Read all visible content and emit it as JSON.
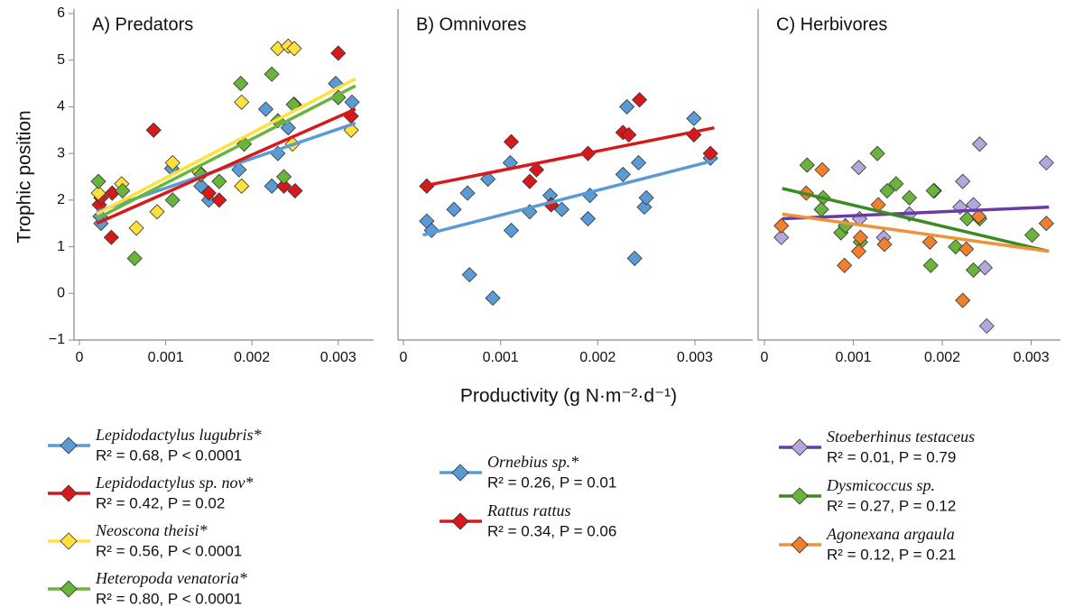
{
  "chart_data": [
    {
      "type": "scatter",
      "title": "A) Predators",
      "ylabel": "Trophic position",
      "xlim": [
        0,
        0.0034
      ],
      "ylim": [
        -1,
        6
      ],
      "xticks": [
        0,
        0.001,
        0.002,
        0.003
      ],
      "yticks": [
        {
          "value": -1,
          "label": "−1"
        },
        0,
        1,
        2,
        3,
        4,
        5,
        6
      ],
      "series": [
        {
          "name": "Lepidodactylus lugubris*",
          "stats": "R² = 0.68, P < 0.0001",
          "color": "#5b9bd5",
          "x": [
            0.00024,
            0.00025,
            0.00107,
            0.00141,
            0.0015,
            0.00185,
            0.00216,
            0.00223,
            0.0023,
            0.00242,
            0.00249,
            0.00297,
            0.00316
          ],
          "values": [
            1.65,
            1.5,
            2.68,
            2.3,
            2.0,
            2.65,
            3.95,
            2.3,
            3.0,
            3.55,
            4.05,
            4.5,
            4.1
          ],
          "fit_x": [
            0.0002,
            0.0032
          ],
          "fit_y": [
            1.75,
            3.65
          ]
        },
        {
          "name": "Lepidodactylus sp. nov*",
          "stats": "R² = 0.42, P = 0.02",
          "color": "#d7191c",
          "x": [
            0.00023,
            0.00025,
            0.00037,
            0.00038,
            0.00086,
            0.0015,
            0.00162,
            0.00237,
            0.0025,
            0.003,
            0.00315
          ],
          "values": [
            1.9,
            2.05,
            1.2,
            2.15,
            3.5,
            2.15,
            2.0,
            2.3,
            2.2,
            5.15,
            3.8
          ],
          "fit_x": [
            0.0002,
            0.0032
          ],
          "fit_y": [
            1.5,
            3.95
          ]
        },
        {
          "name": "Neoscona theisi*",
          "stats": "R² = 0.56, P < 0.0001",
          "color": "#ffe13a",
          "x": [
            0.00022,
            0.00049,
            0.00066,
            0.0009,
            0.00108,
            0.00139,
            0.00188,
            0.00188,
            0.0023,
            0.00242,
            0.00249,
            0.00247,
            0.003,
            0.00315
          ],
          "values": [
            2.15,
            2.35,
            1.4,
            1.75,
            2.8,
            2.6,
            2.3,
            4.1,
            5.25,
            5.3,
            5.25,
            3.2,
            4.2,
            3.5
          ],
          "fit_x": [
            0.0002,
            0.0032
          ],
          "fit_y": [
            1.7,
            4.6
          ]
        },
        {
          "name": "Heteropoda venatoria*",
          "stats": "R² = 0.80, P < 0.0001",
          "color": "#6ab43e",
          "x": [
            0.00022,
            0.0005,
            0.00064,
            0.00108,
            0.00141,
            0.00162,
            0.00187,
            0.00191,
            0.00223,
            0.0023,
            0.00237,
            0.00248,
            0.003
          ],
          "values": [
            2.4,
            2.2,
            0.75,
            2.0,
            2.55,
            2.4,
            4.5,
            3.2,
            4.7,
            3.7,
            2.5,
            4.05,
            4.2
          ],
          "fit_x": [
            0.0002,
            0.0032
          ],
          "fit_y": [
            1.6,
            4.45
          ]
        }
      ]
    },
    {
      "type": "scatter",
      "title": "B) Omnivores",
      "xlabel": "Productivity (g N·m⁻²·d⁻¹)",
      "xlim": [
        0,
        0.0034
      ],
      "ylim": [
        -1,
        6
      ],
      "xticks": [
        0,
        0.001,
        0.002,
        0.003
      ],
      "series": [
        {
          "name": "Ornebius sp.*",
          "stats": "R² = 0.26, P = 0.01",
          "color": "#5b9bd5",
          "x": [
            0.00024,
            0.00029,
            0.00052,
            0.00066,
            0.00068,
            0.00087,
            0.00092,
            0.0011,
            0.00111,
            0.0013,
            0.00151,
            0.00163,
            0.0019,
            0.00192,
            0.00226,
            0.0023,
            0.00238,
            0.00242,
            0.00248,
            0.0025,
            0.00299,
            0.00316
          ],
          "values": [
            1.55,
            1.35,
            1.8,
            2.15,
            0.4,
            2.45,
            -0.1,
            2.8,
            1.35,
            1.75,
            2.1,
            1.8,
            1.6,
            2.1,
            2.55,
            4.0,
            0.75,
            2.8,
            1.85,
            2.05,
            3.75,
            2.9
          ],
          "fit_x": [
            0.0002,
            0.0032
          ],
          "fit_y": [
            1.25,
            2.85
          ]
        },
        {
          "name": "Rattus rattus",
          "stats": "R² = 0.34, P = 0.06",
          "color": "#d7191c",
          "x": [
            0.00024,
            0.00111,
            0.0013,
            0.00137,
            0.00152,
            0.0019,
            0.00226,
            0.00232,
            0.00243,
            0.00299,
            0.00316
          ],
          "values": [
            2.3,
            3.25,
            2.4,
            2.65,
            1.9,
            3.0,
            3.45,
            3.4,
            4.15,
            3.4,
            3.0
          ],
          "fit_x": [
            0.0002,
            0.0032
          ],
          "fit_y": [
            2.3,
            3.55
          ]
        }
      ]
    },
    {
      "type": "scatter",
      "title": "C) Herbivores",
      "xlim": [
        0,
        0.0034
      ],
      "ylim": [
        -1,
        6
      ],
      "xticks": [
        0,
        0.001,
        0.002,
        0.003
      ],
      "series": [
        {
          "name": "Stoeberhinus testaceus",
          "stats": "R² = 0.01, P = 0.79",
          "color": "#b3a7dc",
          "line_color": "#6a3aa5",
          "x": [
            0.00019,
            0.00106,
            0.00107,
            0.00134,
            0.00163,
            0.00191,
            0.0022,
            0.00223,
            0.00235,
            0.00242,
            0.00248,
            0.0025,
            0.00317
          ],
          "values": [
            1.2,
            2.7,
            1.6,
            1.2,
            1.7,
            2.2,
            1.85,
            2.4,
            1.9,
            3.2,
            0.55,
            -0.7,
            2.8
          ],
          "fit_x": [
            0.0002,
            0.0032
          ],
          "fit_y": [
            1.6,
            1.85
          ]
        },
        {
          "name": "Dysmicoccus sp.",
          "stats": "R² = 0.27, P = 0.12",
          "color": "#6ab43e",
          "line_color": "#3b8a24",
          "x": [
            0.00048,
            0.00066,
            0.00064,
            0.00086,
            0.00091,
            0.00108,
            0.00127,
            0.00138,
            0.00148,
            0.00163,
            0.00187,
            0.0019,
            0.00215,
            0.00228,
            0.00235,
            0.00242,
            0.00301
          ],
          "values": [
            2.75,
            2.05,
            1.8,
            1.3,
            1.45,
            1.1,
            3.0,
            2.2,
            2.35,
            2.05,
            0.6,
            2.2,
            1.0,
            1.6,
            0.5,
            1.6,
            1.25
          ],
          "fit_x": [
            0.0002,
            0.0032
          ],
          "fit_y": [
            2.25,
            0.9
          ]
        },
        {
          "name": "Agonexana argaula",
          "stats": "R² = 0.12, P = 0.21",
          "color": "#f07f2e",
          "line_color": "#f0923a",
          "x": [
            0.00019,
            0.00047,
            0.00065,
            0.0009,
            0.00106,
            0.00108,
            0.00128,
            0.00135,
            0.00186,
            0.00223,
            0.00227,
            0.00241,
            0.00317
          ],
          "values": [
            1.45,
            2.15,
            2.65,
            0.6,
            0.9,
            1.2,
            1.9,
            1.05,
            1.1,
            -0.15,
            0.95,
            1.65,
            1.5
          ],
          "fit_x": [
            0.0002,
            0.0032
          ],
          "fit_y": [
            1.7,
            0.9
          ]
        }
      ]
    }
  ]
}
